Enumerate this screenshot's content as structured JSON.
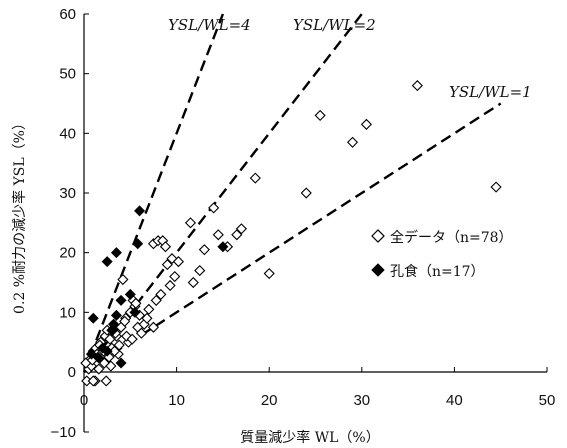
{
  "chart_data": {
    "type": "scatter",
    "xlabel": "質量減少率 WL（%）",
    "ylabel": "0.2 %耐力の減少率 YSL（%）",
    "xlim": [
      0,
      50
    ],
    "ylim": [
      -10,
      60
    ],
    "x_ticks": [
      "0",
      "10",
      "20",
      "30",
      "40",
      "50"
    ],
    "y_ticks": [
      "−10",
      "0",
      "10",
      "20",
      "30",
      "40",
      "50",
      "60"
    ],
    "grid": false,
    "legend_position": "middle-right",
    "series": [
      {
        "name": "全データ（n=78）",
        "marker": "open-diamond",
        "color": "#000000",
        "points": [
          [
            0.3,
            -1.5
          ],
          [
            0.5,
            0.5
          ],
          [
            0.6,
            2
          ],
          [
            0.8,
            1
          ],
          [
            1.0,
            3.5
          ],
          [
            1.2,
            -1.5
          ],
          [
            1.3,
            4
          ],
          [
            1.5,
            2.5
          ],
          [
            1.6,
            0.5
          ],
          [
            1.8,
            5
          ],
          [
            2.0,
            3
          ],
          [
            2.2,
            1.5
          ],
          [
            2.3,
            6
          ],
          [
            2.4,
            -1.5
          ],
          [
            2.5,
            7
          ],
          [
            2.7,
            2.5
          ],
          [
            3.0,
            4
          ],
          [
            3.2,
            8
          ],
          [
            3.5,
            6
          ],
          [
            3.7,
            3
          ],
          [
            4.0,
            7.5
          ],
          [
            4.2,
            15.5
          ],
          [
            4.5,
            9
          ],
          [
            4.8,
            5
          ],
          [
            5.0,
            10
          ],
          [
            5.3,
            12
          ],
          [
            5.5,
            11
          ],
          [
            5.8,
            7.5
          ],
          [
            6.0,
            9.5
          ],
          [
            6.5,
            8
          ],
          [
            7.0,
            10.5
          ],
          [
            7.5,
            7.5
          ],
          [
            7.5,
            21.5
          ],
          [
            8.0,
            22
          ],
          [
            8.3,
            13
          ],
          [
            8.5,
            22
          ],
          [
            8.8,
            21
          ],
          [
            9.0,
            18
          ],
          [
            9.3,
            14.5
          ],
          [
            9.5,
            19
          ],
          [
            10.2,
            18.5
          ],
          [
            11.5,
            25
          ],
          [
            11.8,
            15
          ],
          [
            13.0,
            20.5
          ],
          [
            14.0,
            27.5
          ],
          [
            14.5,
            23
          ],
          [
            16.5,
            23
          ],
          [
            17.0,
            24
          ],
          [
            18.5,
            32.5
          ],
          [
            20.0,
            16.5
          ],
          [
            24.0,
            30
          ],
          [
            25.5,
            43
          ],
          [
            29.0,
            38.5
          ],
          [
            30.5,
            41.5
          ],
          [
            36.0,
            48
          ],
          [
            44.5,
            31
          ],
          [
            1.0,
            -1.5
          ],
          [
            1.7,
            4.5
          ],
          [
            2.8,
            5.5
          ],
          [
            3.3,
            3.5
          ],
          [
            3.8,
            4.5
          ],
          [
            4.6,
            6
          ],
          [
            5.2,
            5.5
          ],
          [
            6.2,
            6.5
          ],
          [
            0.2,
            1.5
          ],
          [
            0.9,
            2
          ],
          [
            1.4,
            3
          ],
          [
            2.1,
            3.5
          ],
          [
            2.9,
            1
          ],
          [
            3.4,
            6.5
          ],
          [
            4.4,
            8.5
          ],
          [
            5.6,
            11.5
          ],
          [
            6.8,
            9
          ],
          [
            7.8,
            12
          ],
          [
            9.8,
            16
          ],
          [
            12.5,
            17
          ],
          [
            15.5,
            21
          ],
          [
            3.1,
            7
          ]
        ]
      },
      {
        "name": "孔食（n=17）",
        "marker": "filled-diamond",
        "color": "#000000",
        "points": [
          [
            0.8,
            3
          ],
          [
            1.0,
            9
          ],
          [
            1.5,
            2.5
          ],
          [
            2.0,
            4
          ],
          [
            2.5,
            3.5
          ],
          [
            2.5,
            18.5
          ],
          [
            3.0,
            7
          ],
          [
            3.5,
            20
          ],
          [
            3.5,
            9.5
          ],
          [
            4.0,
            12
          ],
          [
            4.0,
            1.5
          ],
          [
            5.0,
            13
          ],
          [
            5.5,
            10
          ],
          [
            5.8,
            21.5
          ],
          [
            6.0,
            27
          ],
          [
            15.0,
            21
          ],
          [
            3.2,
            8
          ]
        ]
      }
    ],
    "reference_lines": [
      {
        "label": "YSL/WL=4",
        "slope": 4
      },
      {
        "label": "YSL/WL=2",
        "slope": 2
      },
      {
        "label": "YSL/WL=1",
        "slope": 1
      }
    ]
  }
}
